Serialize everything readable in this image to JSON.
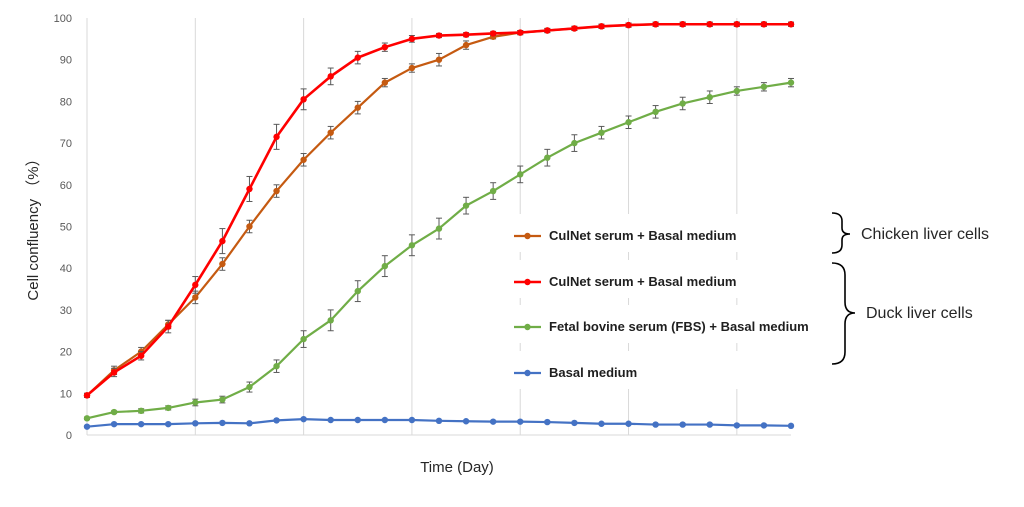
{
  "chart_data": {
    "type": "line",
    "title": "",
    "xlabel": "Time (Day)",
    "ylabel": "Cell confluency （%）",
    "ylim": [
      0,
      100
    ],
    "yticks": [
      0,
      10,
      20,
      30,
      40,
      50,
      60,
      70,
      80,
      90,
      100
    ],
    "grid": "vertical",
    "x_points": 27,
    "series": [
      {
        "name": "CulNet serum + Basal medium",
        "color": "#c55a11",
        "values": [
          9.5,
          15.5,
          20,
          26.5,
          33,
          41,
          50,
          58.5,
          66,
          72.5,
          78.5,
          84.5,
          88,
          90,
          93.5,
          95.5,
          96.5,
          97,
          97.5,
          98,
          98.3,
          98.5,
          98.5,
          98.5,
          98.5,
          98.5,
          98.5
        ],
        "errors": [
          0.5,
          1,
          1,
          1,
          1.5,
          1.5,
          1.5,
          1.5,
          1.5,
          1.5,
          1.5,
          1,
          1,
          1.5,
          1,
          0.5,
          0.5,
          0.5,
          0.5,
          0.5,
          0.5,
          0.5,
          0.5,
          0.5,
          0.5,
          0.5,
          0.5
        ]
      },
      {
        "name": "CulNet serum + Basal medium",
        "color": "#ff0000",
        "values": [
          9.5,
          15,
          19,
          26,
          36,
          46.5,
          59,
          71.5,
          80.5,
          86,
          90.5,
          93,
          95,
          95.8,
          96,
          96.3,
          96.5,
          97,
          97.5,
          98,
          98.3,
          98.5,
          98.5,
          98.5,
          98.5,
          98.5,
          98.5
        ],
        "errors": [
          0.5,
          1,
          1,
          1.5,
          2,
          3,
          3,
          3,
          2.5,
          2,
          1.5,
          1,
          0.8,
          0.5,
          0.5,
          0.5,
          0.5,
          0.5,
          0.5,
          0.5,
          0.5,
          0.5,
          0.5,
          0.5,
          0.5,
          0.5,
          0.5
        ]
      },
      {
        "name": "Fetal bovine serum (FBS) + Basal medium",
        "color": "#70ad47",
        "values": [
          4,
          5.5,
          5.8,
          6.5,
          7.8,
          8.5,
          11.5,
          16.5,
          23,
          27.5,
          34.5,
          40.5,
          45.5,
          49.5,
          55,
          58.5,
          62.5,
          66.5,
          70,
          72.5,
          75,
          77.5,
          79.5,
          81,
          82.5,
          83.5,
          84.5
        ],
        "errors": [
          0.3,
          0.3,
          0.5,
          0.5,
          0.8,
          0.8,
          1.2,
          1.5,
          2,
          2.5,
          2.5,
          2.5,
          2.5,
          2.5,
          2,
          2,
          2,
          2,
          2,
          1.5,
          1.5,
          1.5,
          1.5,
          1.5,
          1,
          1,
          1
        ]
      },
      {
        "name": "Basal medium",
        "color": "#4472c4",
        "values": [
          2,
          2.6,
          2.6,
          2.6,
          2.8,
          2.9,
          2.8,
          3.5,
          3.8,
          3.6,
          3.6,
          3.6,
          3.6,
          3.4,
          3.3,
          3.2,
          3.2,
          3.1,
          2.9,
          2.7,
          2.7,
          2.5,
          2.5,
          2.5,
          2.3,
          2.3,
          2.2
        ],
        "errors": [
          0.2,
          0.2,
          0.2,
          0.2,
          0.2,
          0.2,
          0.2,
          0.2,
          0.2,
          0.2,
          0.2,
          0.2,
          0.2,
          0.2,
          0.2,
          0.2,
          0.2,
          0.2,
          0.2,
          0.2,
          0.2,
          0.2,
          0.2,
          0.2,
          0.2,
          0.2,
          0.2
        ]
      }
    ],
    "legend_placement": "right-inside",
    "groups": [
      {
        "label": "Chicken liver cells",
        "series_indices": [
          0
        ]
      },
      {
        "label": "Duck liver cells",
        "series_indices": [
          1,
          2,
          3
        ]
      }
    ]
  }
}
